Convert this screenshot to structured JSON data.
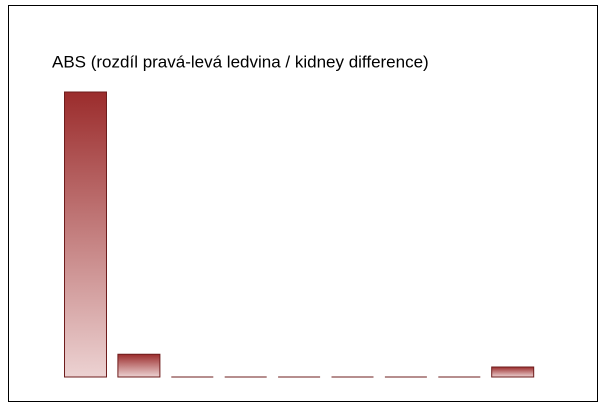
{
  "chart_data": {
    "type": "bar",
    "title": "ABS (rozdíl pravá-levá ledvina / kidney difference)",
    "categories": [
      null,
      null,
      null,
      null,
      null,
      null,
      null,
      null,
      null
    ],
    "values": [
      100,
      8,
      0,
      0,
      0,
      0,
      0,
      0,
      3.5
    ],
    "color": "#9b2c2c",
    "ylim": [
      0,
      100
    ]
  }
}
